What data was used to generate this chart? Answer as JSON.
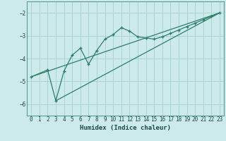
{
  "xlabel": "Humidex (Indice chaleur)",
  "bg_color": "#cceae8",
  "grid_color": "#aad4d0",
  "line_color": "#2e7d6e",
  "xlim": [
    -0.5,
    23.5
  ],
  "ylim": [
    -6.5,
    -1.5
  ],
  "yticks": [
    -6,
    -5,
    -4,
    -3,
    -2
  ],
  "xticks": [
    0,
    1,
    2,
    3,
    4,
    5,
    6,
    7,
    8,
    9,
    10,
    11,
    12,
    13,
    14,
    15,
    16,
    17,
    18,
    19,
    20,
    21,
    22,
    23
  ],
  "line1_x": [
    0,
    2,
    3,
    4,
    5,
    6,
    7,
    8,
    9,
    10,
    11,
    12,
    13,
    14,
    15,
    16,
    17,
    18,
    19,
    20,
    21,
    22,
    23
  ],
  "line1_y": [
    -4.8,
    -4.5,
    -5.85,
    -4.55,
    -3.85,
    -3.55,
    -4.25,
    -3.65,
    -3.15,
    -2.95,
    -2.65,
    -2.8,
    -3.05,
    -3.1,
    -3.15,
    -3.05,
    -2.9,
    -2.75,
    -2.6,
    -2.45,
    -2.3,
    -2.15,
    -2.0
  ],
  "line2_x": [
    0,
    23
  ],
  "line2_y": [
    -4.8,
    -2.0
  ],
  "line3_x": [
    3,
    23
  ],
  "line3_y": [
    -5.85,
    -2.0
  ]
}
